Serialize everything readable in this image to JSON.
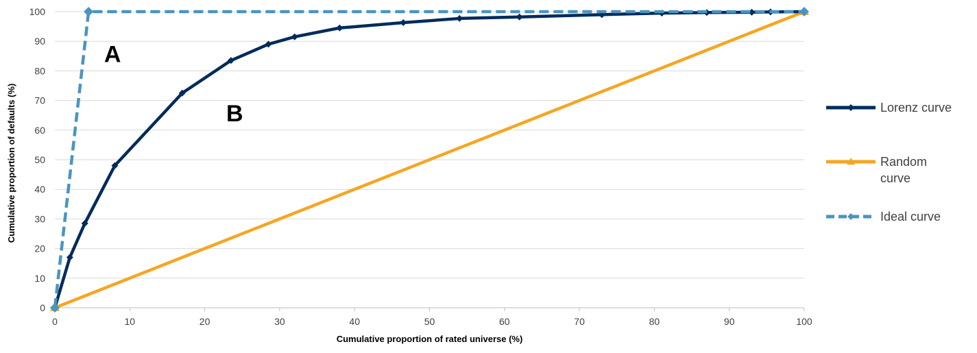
{
  "chart_data": {
    "type": "line",
    "xlabel": "Cumulative proportion of rated universe (%)",
    "ylabel": "Cumulative proportion of defaults (%)",
    "xlim": [
      0,
      100
    ],
    "ylim": [
      0,
      100
    ],
    "x_ticks": [
      0,
      10,
      20,
      30,
      40,
      50,
      60,
      70,
      80,
      90,
      100
    ],
    "y_ticks": [
      0,
      10,
      20,
      30,
      40,
      50,
      60,
      70,
      80,
      90,
      100
    ],
    "grid": "horizontal",
    "legend_position": "right",
    "series": [
      {
        "name": "Lorenz curve",
        "color": "#002B5C",
        "style": "solid",
        "marker": "diamond",
        "points": [
          [
            0,
            0
          ],
          [
            2,
            17
          ],
          [
            4,
            28.5
          ],
          [
            8,
            48
          ],
          [
            17,
            72.5
          ],
          [
            23.5,
            83.5
          ],
          [
            28.5,
            89
          ],
          [
            32,
            91.5
          ],
          [
            38,
            94.5
          ],
          [
            46.5,
            96.3
          ],
          [
            54,
            97.7
          ],
          [
            62,
            98.2
          ],
          [
            73,
            99
          ],
          [
            81,
            99.5
          ],
          [
            87,
            99.7
          ],
          [
            93,
            99.8
          ],
          [
            95.5,
            99.9
          ],
          [
            100,
            100
          ]
        ]
      },
      {
        "name": "Random curve",
        "color": "#F5A623",
        "style": "solid",
        "marker": "triangle",
        "points": [
          [
            0,
            0
          ],
          [
            100,
            100
          ]
        ]
      },
      {
        "name": "Ideal curve",
        "color": "#4A94C1",
        "style": "dashed",
        "marker": "diamond",
        "points": [
          [
            0,
            0
          ],
          [
            4.5,
            100
          ],
          [
            100,
            100
          ]
        ]
      }
    ],
    "annotations": [
      {
        "text": "A",
        "x": 7.7,
        "y": 83
      },
      {
        "text": "B",
        "x": 24,
        "y": 63
      }
    ]
  }
}
